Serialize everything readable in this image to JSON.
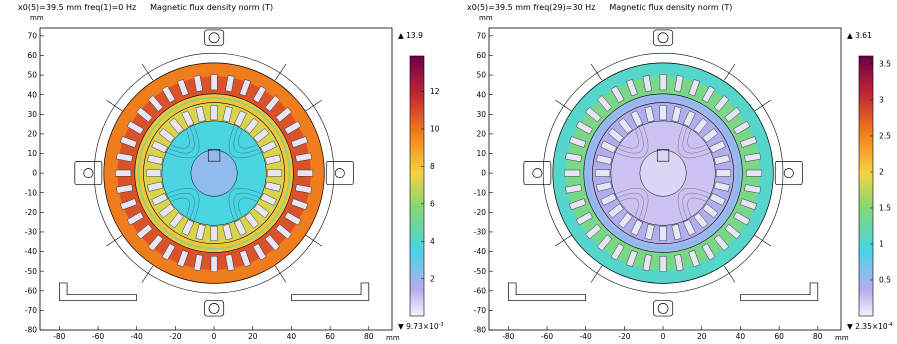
{
  "chart_data": [
    {
      "type": "heatmap",
      "subtitle": "x0(5)=39.5 mm freq(1)=0 Hz",
      "title": "Magnetic flux density norm (T)",
      "ylabel_unit": "mm",
      "xlabel_unit": "mm",
      "x_ticks": [
        -80,
        -60,
        -40,
        -20,
        0,
        20,
        40,
        60,
        80
      ],
      "y_ticks": [
        70,
        60,
        50,
        40,
        30,
        20,
        10,
        0,
        -10,
        -20,
        -30,
        -40,
        -50,
        -60,
        -70,
        -80
      ],
      "xlim": [
        -90,
        92
      ],
      "ylim": [
        -80,
        74
      ],
      "colorbar": {
        "max_label": "13.9",
        "min_label": "9.73×10",
        "min_exp": "-3",
        "max_value": 13.9,
        "min_value": 0.00973,
        "ticks": [
          2,
          4,
          6,
          8,
          10,
          12
        ]
      },
      "field": {
        "bore": 3.6,
        "stator_yoke": 9.8,
        "stator_teeth": 10.8,
        "rotor": 8.0
      }
    },
    {
      "type": "heatmap",
      "subtitle": "x0(5)=39.5 mm freq(29)=30 Hz",
      "title": "Magnetic flux density norm (T)",
      "ylabel_unit": "mm",
      "xlabel_unit": "mm",
      "x_ticks": [
        -80,
        -60,
        -40,
        -20,
        0,
        20,
        40,
        60,
        80
      ],
      "y_ticks": [
        70,
        60,
        50,
        40,
        30,
        20,
        10,
        0,
        -10,
        -20,
        -30,
        -40,
        -50,
        -60,
        -70,
        -80
      ],
      "xlim": [
        -90,
        92
      ],
      "ylim": [
        -80,
        74
      ],
      "colorbar": {
        "max_label": "3.61",
        "min_label": "2.35×10",
        "min_exp": "-4",
        "max_value": 3.61,
        "min_value": 0.000235,
        "ticks": [
          0.5,
          1,
          1.5,
          2,
          2.5,
          3,
          3.5
        ]
      },
      "field": {
        "bore": 0.25,
        "stator_yoke": 1.05,
        "stator_teeth": 1.4,
        "rotor": 0.45
      }
    }
  ]
}
